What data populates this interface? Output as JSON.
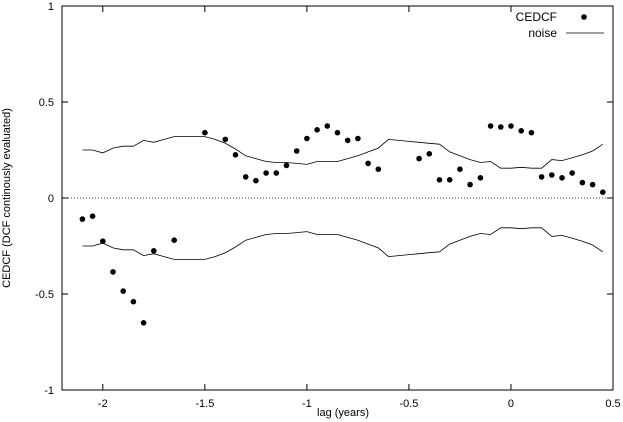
{
  "chart_data": {
    "type": "scatter",
    "title": "",
    "xlabel": "lag (years)",
    "ylabel": "CEDCF (DCF continously evaluated)",
    "xlim": [
      -2.2,
      0.5
    ],
    "ylim": [
      -1,
      1
    ],
    "xticks": [
      -2,
      -1.5,
      -1,
      -0.5,
      0,
      0.5
    ],
    "xtick_labels": [
      "-2",
      "-1.5",
      "-1",
      "-0.5",
      "0",
      "0.5"
    ],
    "yticks": [
      -1,
      -0.5,
      0,
      0.5,
      1
    ],
    "ytick_labels": [
      "-1",
      "-0.5",
      "0",
      "0.5",
      "1"
    ],
    "legend_position": "top-right",
    "zero_line": true,
    "series": [
      {
        "name": "CEDCF",
        "style": "points",
        "x": [
          -2.1,
          -2.05,
          -2.0,
          -1.95,
          -1.9,
          -1.85,
          -1.8,
          -1.75,
          -1.65,
          -1.5,
          -1.4,
          -1.35,
          -1.3,
          -1.25,
          -1.2,
          -1.15,
          -1.1,
          -1.05,
          -1.0,
          -0.95,
          -0.9,
          -0.85,
          -0.8,
          -0.75,
          -0.7,
          -0.65,
          -0.45,
          -0.4,
          -0.35,
          -0.3,
          -0.25,
          -0.2,
          -0.15,
          -0.1,
          -0.05,
          0.0,
          0.05,
          0.1,
          0.15,
          0.2,
          0.25,
          0.3,
          0.35,
          0.4,
          0.45
        ],
        "y": [
          -0.11,
          -0.095,
          -0.225,
          -0.385,
          -0.485,
          -0.54,
          -0.65,
          -0.275,
          -0.22,
          0.34,
          0.305,
          0.225,
          0.11,
          0.09,
          0.13,
          0.13,
          0.17,
          0.245,
          0.31,
          0.355,
          0.375,
          0.34,
          0.3,
          0.31,
          0.18,
          0.15,
          0.205,
          0.23,
          0.095,
          0.095,
          0.15,
          0.07,
          0.105,
          0.375,
          0.37,
          0.375,
          0.35,
          0.34,
          0.11,
          0.12,
          0.105,
          0.13,
          0.08,
          0.07,
          0.03
        ]
      },
      {
        "name": "noise",
        "style": "line",
        "x": [
          -2.1,
          -2.05,
          -2.0,
          -1.95,
          -1.9,
          -1.85,
          -1.8,
          -1.75,
          -1.7,
          -1.65,
          -1.6,
          -1.55,
          -1.5,
          -1.45,
          -1.4,
          -1.35,
          -1.3,
          -1.25,
          -1.2,
          -1.15,
          -1.1,
          -1.05,
          -1.0,
          -0.95,
          -0.9,
          -0.85,
          -0.8,
          -0.75,
          -0.7,
          -0.65,
          -0.6,
          -0.55,
          -0.5,
          -0.45,
          -0.4,
          -0.35,
          -0.3,
          -0.25,
          -0.2,
          -0.15,
          -0.1,
          -0.05,
          0.0,
          0.05,
          0.1,
          0.15,
          0.2,
          0.25,
          0.3,
          0.35,
          0.4,
          0.45
        ],
        "y": [
          0.25,
          0.25,
          0.235,
          0.26,
          0.27,
          0.27,
          0.3,
          0.29,
          0.305,
          0.32,
          0.32,
          0.32,
          0.32,
          0.305,
          0.285,
          0.255,
          0.22,
          0.205,
          0.19,
          0.185,
          0.185,
          0.18,
          0.175,
          0.19,
          0.19,
          0.19,
          0.205,
          0.22,
          0.24,
          0.26,
          0.305,
          0.3,
          0.295,
          0.29,
          0.285,
          0.28,
          0.24,
          0.22,
          0.2,
          0.185,
          0.19,
          0.155,
          0.155,
          0.16,
          0.155,
          0.155,
          0.2,
          0.195,
          0.21,
          0.225,
          0.245,
          0.28
        ]
      },
      {
        "name": "",
        "style": "line",
        "legend": false,
        "x": [
          -2.1,
          -2.05,
          -2.0,
          -1.95,
          -1.9,
          -1.85,
          -1.8,
          -1.75,
          -1.7,
          -1.65,
          -1.6,
          -1.55,
          -1.5,
          -1.45,
          -1.4,
          -1.35,
          -1.3,
          -1.25,
          -1.2,
          -1.15,
          -1.1,
          -1.05,
          -1.0,
          -0.95,
          -0.9,
          -0.85,
          -0.8,
          -0.75,
          -0.7,
          -0.65,
          -0.6,
          -0.55,
          -0.5,
          -0.45,
          -0.4,
          -0.35,
          -0.3,
          -0.25,
          -0.2,
          -0.15,
          -0.1,
          -0.05,
          0.0,
          0.05,
          0.1,
          0.15,
          0.2,
          0.25,
          0.3,
          0.35,
          0.4,
          0.45
        ],
        "y": [
          -0.25,
          -0.25,
          -0.235,
          -0.26,
          -0.27,
          -0.27,
          -0.3,
          -0.29,
          -0.305,
          -0.32,
          -0.32,
          -0.32,
          -0.32,
          -0.305,
          -0.285,
          -0.255,
          -0.22,
          -0.205,
          -0.19,
          -0.185,
          -0.185,
          -0.18,
          -0.175,
          -0.19,
          -0.19,
          -0.19,
          -0.205,
          -0.22,
          -0.24,
          -0.26,
          -0.305,
          -0.3,
          -0.295,
          -0.29,
          -0.285,
          -0.28,
          -0.24,
          -0.22,
          -0.2,
          -0.185,
          -0.19,
          -0.155,
          -0.155,
          -0.16,
          -0.155,
          -0.155,
          -0.2,
          -0.195,
          -0.21,
          -0.225,
          -0.245,
          -0.28
        ]
      }
    ]
  }
}
